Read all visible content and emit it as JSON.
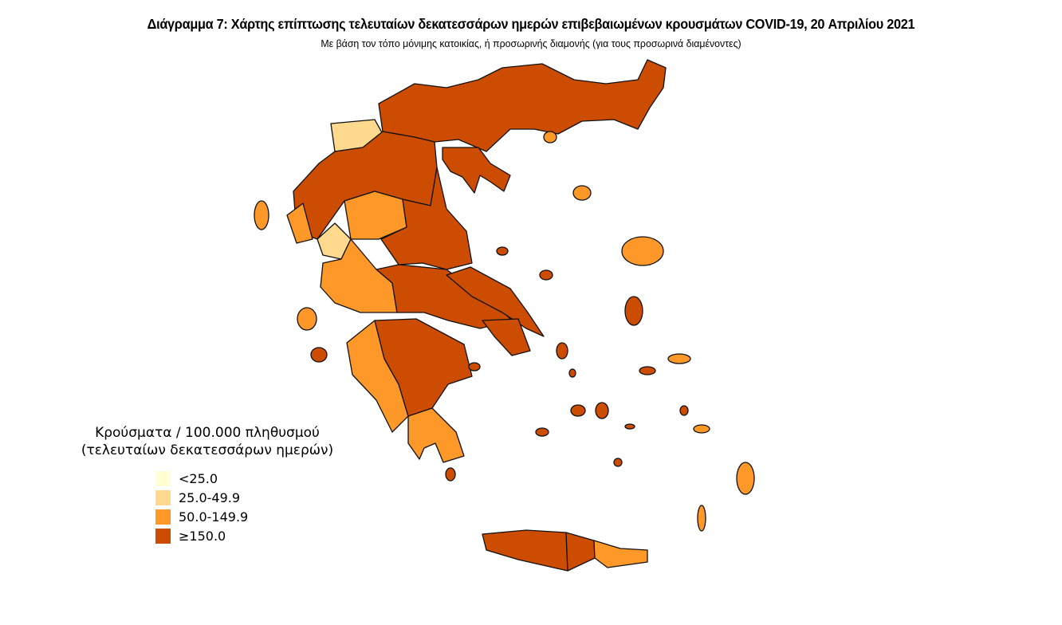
{
  "title": "Διάγραμμα 7: Χάρτης επίπτωσης τελευταίων δεκατεσσάρων ημερών επιβεβαιωμένων κρουσμάτων COVID-19, 20 Απριλίου 2021",
  "subtitle": "Με βάση τον τόπο μόνιμης κατοικίας, ή προσωρινής διαμονής (για τους προσωρινά διαμένοντες)",
  "legend": {
    "title_line1": "Κρούσματα / 100.000 πληθυσμού",
    "title_line2": "(τελευταίων δεκατεσσάρων ημερών)",
    "items": [
      {
        "label": "<25.0",
        "color": "#ffffd4"
      },
      {
        "label": "25.0-49.9",
        "color": "#fed98e"
      },
      {
        "label": "50.0-149.9",
        "color": "#fe9929"
      },
      {
        "label": "≥150.0",
        "color": "#cc4c02"
      }
    ]
  }
}
